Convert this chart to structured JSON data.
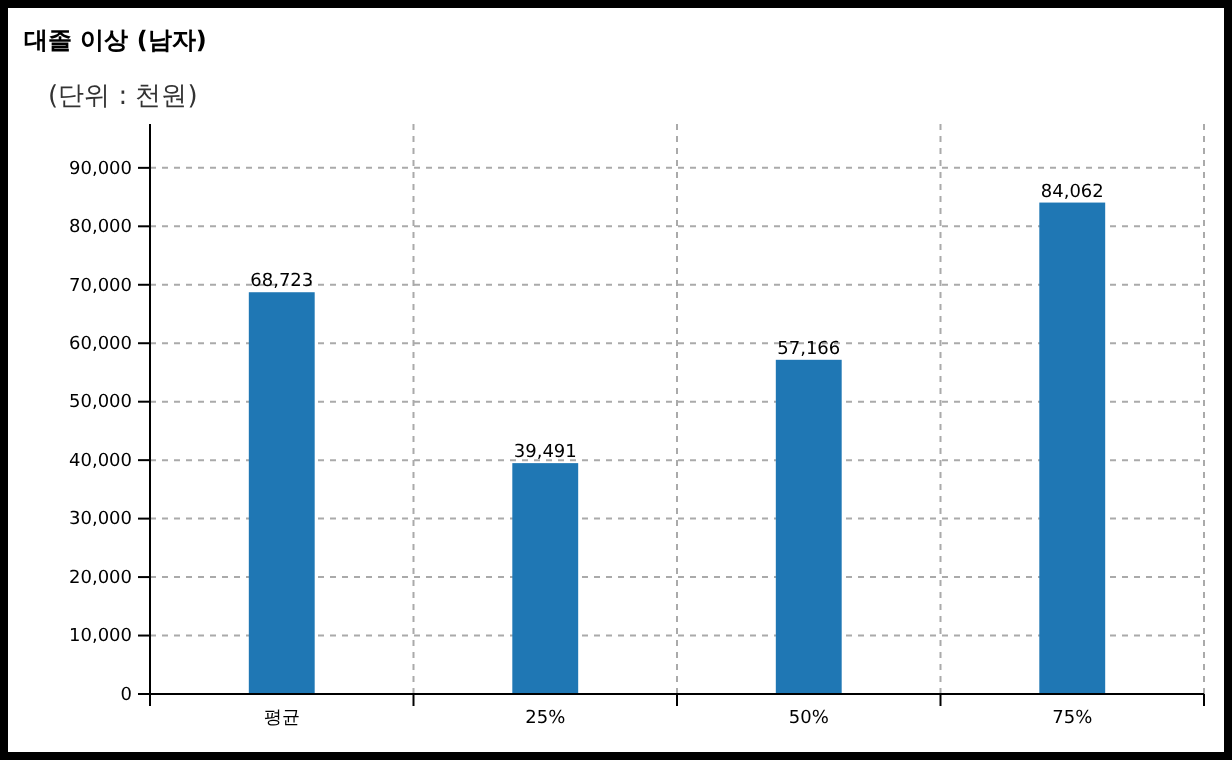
{
  "chart_data": {
    "type": "bar",
    "title": "대졸 이상 (남자)",
    "subtitle": "(단위 : 천원)",
    "categories": [
      "평균",
      "25%",
      "50%",
      "75%"
    ],
    "values": [
      68723,
      39491,
      57166,
      84062
    ],
    "color": "#1f77b4",
    "ylim": [
      0,
      97500
    ],
    "yticks": [
      {
        "value": 0,
        "label": "0"
      },
      {
        "value": 10000,
        "label": "10,000"
      },
      {
        "value": 20000,
        "label": "20,000"
      },
      {
        "value": 30000,
        "label": "30,000"
      },
      {
        "value": 40000,
        "label": "40,000"
      },
      {
        "value": 50000,
        "label": "50,000"
      },
      {
        "value": 60000,
        "label": "60,000"
      },
      {
        "value": 70000,
        "label": "70,000"
      },
      {
        "value": 80000,
        "label": "80,000"
      },
      {
        "value": 90000,
        "label": "90,000"
      }
    ],
    "value_labels": [
      "68,723",
      "39,491",
      "57,166",
      "84,062"
    ],
    "grid": true
  }
}
